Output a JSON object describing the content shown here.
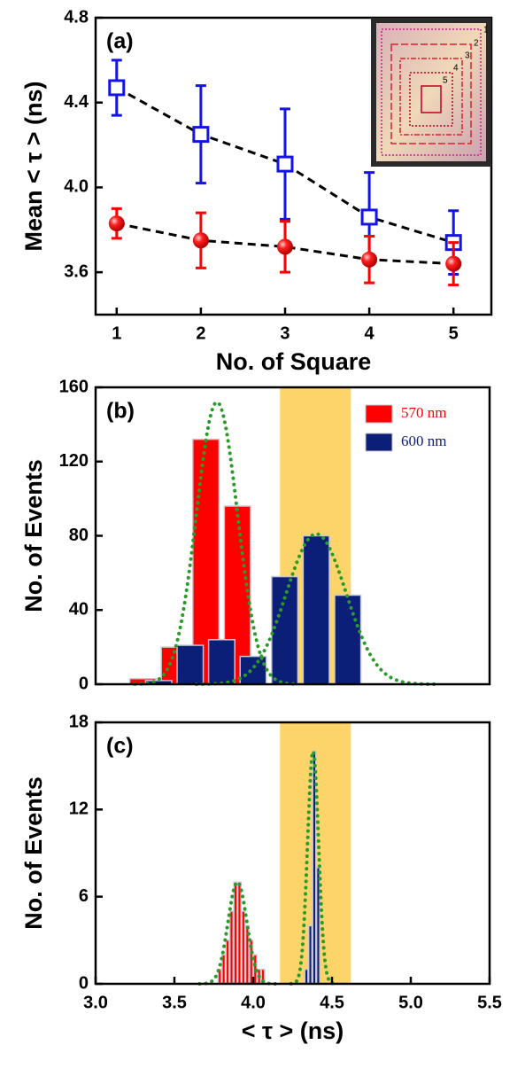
{
  "chart_data": [
    {
      "type": "scatter",
      "panel_label": "(a)",
      "xlabel": "No. of Square",
      "ylabel": "Mean < τ > (ns)",
      "x": [
        1,
        2,
        3,
        4,
        5
      ],
      "xlim": [
        0.75,
        5.45
      ],
      "xticks": [
        1,
        2,
        3,
        4,
        5
      ],
      "ylim": [
        3.4,
        4.8
      ],
      "yticks": [
        {
          "value": 3.6,
          "label": "3.6"
        },
        {
          "value": 4.0,
          "label": "4.0"
        },
        {
          "value": 4.4,
          "label": "4.4"
        },
        {
          "value": 4.8,
          "label": "4.8"
        }
      ],
      "series": [
        {
          "marker": "square",
          "color": "#1414e6",
          "values": [
            4.47,
            4.25,
            4.11,
            3.86,
            3.74
          ],
          "errors": [
            0.13,
            0.23,
            0.26,
            0.21,
            0.15
          ]
        },
        {
          "marker": "circle",
          "color": "#ff0000",
          "values": [
            3.83,
            3.75,
            3.72,
            3.66,
            3.64
          ],
          "errors": [
            0.07,
            0.13,
            0.12,
            0.11,
            0.1
          ]
        }
      ],
      "inset_labels": [
        "1",
        "2",
        "3",
        "4",
        "5"
      ]
    },
    {
      "type": "histogram",
      "panel_label": "(b)",
      "ylabel": "No. of Events",
      "xlim": [
        3.0,
        5.5
      ],
      "ylim": [
        0,
        160
      ],
      "yticks": [
        0,
        40,
        80,
        120,
        160
      ],
      "region": [
        4.17,
        4.62
      ],
      "legend": "upper right",
      "series": [
        {
          "name": "570 nm",
          "color": "#ff0000",
          "bins": [
            3.2,
            3.4,
            3.6,
            3.8,
            4.0
          ],
          "values": [
            3,
            20,
            132,
            96
          ]
        },
        {
          "name": "600 nm",
          "color": "#0b1e78",
          "bins": [
            3.3,
            3.5,
            3.7,
            3.9,
            4.1,
            4.3,
            4.5,
            4.7
          ],
          "values": [
            2,
            21,
            24,
            15,
            58,
            80,
            48
          ]
        }
      ],
      "fits": [
        {
          "color": "#2a9a2a",
          "center": 3.77,
          "sigma": 0.13,
          "amplitude": 152
        },
        {
          "color": "#2a9a2a",
          "center": 4.4,
          "sigma": 0.19,
          "amplitude": 81
        }
      ]
    },
    {
      "type": "histogram",
      "panel_label": "(c)",
      "xlabel": "< τ > (ns)",
      "ylabel": "No. of Events",
      "xlim": [
        3.0,
        5.5
      ],
      "xticks": [
        {
          "value": 3.0,
          "label": "3.0"
        },
        {
          "value": 3.5,
          "label": "3.5"
        },
        {
          "value": 4.0,
          "label": "4.0"
        },
        {
          "value": 4.5,
          "label": "4.5"
        },
        {
          "value": 5.0,
          "label": "5.0"
        },
        {
          "value": 5.5,
          "label": "5.5"
        }
      ],
      "ylim": [
        0,
        18
      ],
      "yticks": [
        0,
        6,
        12,
        18
      ],
      "region": [
        4.17,
        4.62
      ],
      "series": [
        {
          "color": "#ff0000",
          "bins": [
            3.775,
            3.8,
            3.825,
            3.85,
            3.875,
            3.9,
            3.925,
            3.95,
            3.975,
            4.0,
            4.025,
            4.05,
            4.075
          ],
          "values": [
            1,
            2,
            3,
            5,
            7,
            7,
            5,
            4,
            3,
            2,
            1,
            1
          ]
        },
        {
          "color": "#0b1e78",
          "bins": [
            4.325,
            4.35,
            4.375,
            4.4,
            4.425
          ],
          "values": [
            1,
            4,
            16,
            8
          ]
        }
      ],
      "fits": [
        {
          "color": "#2a9a2a",
          "center": 3.9,
          "sigma": 0.06,
          "amplitude": 7
        },
        {
          "color": "#2a9a2a",
          "center": 4.38,
          "sigma": 0.035,
          "amplitude": 16
        }
      ]
    }
  ]
}
